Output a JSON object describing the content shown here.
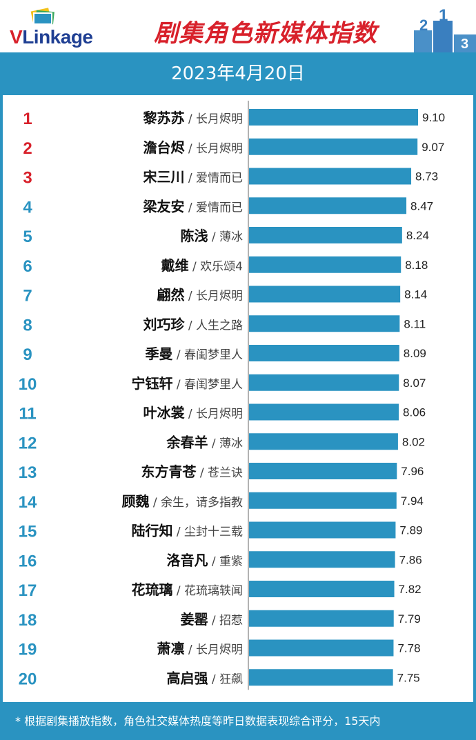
{
  "header": {
    "logo": "VLinkage",
    "title": "剧集角色新媒体指数",
    "podium_digits": [
      "2",
      "1",
      "3"
    ]
  },
  "date": "2023年4月20日",
  "footnote": "* 根据剧集播放指数，角色社交媒体热度等昨日数据表现综合评分，15天内",
  "colors": {
    "accent": "#2a93c1",
    "rank_top": "#d8212b",
    "rank": "#2a93c1",
    "bar": "#2a93c1"
  },
  "chart_data": {
    "type": "bar",
    "orientation": "horizontal",
    "rows": [
      {
        "rank": "1",
        "name": "黎苏苏",
        "show": "长月烬明",
        "value": 9.1,
        "label": "9.10"
      },
      {
        "rank": "2",
        "name": "澹台烬",
        "show": "长月烬明",
        "value": 9.07,
        "label": "9.07"
      },
      {
        "rank": "3",
        "name": "宋三川",
        "show": "爱情而已",
        "value": 8.73,
        "label": "8.73"
      },
      {
        "rank": "4",
        "name": "梁友安",
        "show": "爱情而已",
        "value": 8.47,
        "label": "8.47"
      },
      {
        "rank": "5",
        "name": "陈浅",
        "show": "薄冰",
        "value": 8.24,
        "label": "8.24"
      },
      {
        "rank": "6",
        "name": "戴维",
        "show": "欢乐颂4",
        "value": 8.18,
        "label": "8.18"
      },
      {
        "rank": "7",
        "name": "翩然",
        "show": "长月烬明",
        "value": 8.14,
        "label": "8.14"
      },
      {
        "rank": "8",
        "name": "刘巧珍",
        "show": "人生之路",
        "value": 8.11,
        "label": "8.11"
      },
      {
        "rank": "9",
        "name": "季曼",
        "show": "春闺梦里人",
        "value": 8.09,
        "label": "8.09"
      },
      {
        "rank": "10",
        "name": "宁钰轩",
        "show": "春闺梦里人",
        "value": 8.07,
        "label": "8.07"
      },
      {
        "rank": "11",
        "name": "叶冰裳",
        "show": "长月烬明",
        "value": 8.06,
        "label": "8.06"
      },
      {
        "rank": "12",
        "name": "余春羊",
        "show": "薄冰",
        "value": 8.02,
        "label": "8.02"
      },
      {
        "rank": "13",
        "name": "东方青苍",
        "show": "苍兰诀",
        "value": 7.96,
        "label": "7.96"
      },
      {
        "rank": "14",
        "name": "顾魏",
        "show": "余生，请多指教",
        "value": 7.94,
        "label": "7.94"
      },
      {
        "rank": "15",
        "name": "陆行知",
        "show": "尘封十三载",
        "value": 7.89,
        "label": "7.89"
      },
      {
        "rank": "16",
        "name": "洛音凡",
        "show": "重紫",
        "value": 7.86,
        "label": "7.86"
      },
      {
        "rank": "17",
        "name": "花琉璃",
        "show": "花琉璃轶闻",
        "value": 7.82,
        "label": "7.82"
      },
      {
        "rank": "18",
        "name": "姜罂",
        "show": "招惹",
        "value": 7.79,
        "label": "7.79"
      },
      {
        "rank": "19",
        "name": "萧凛",
        "show": "长月烬明",
        "value": 7.78,
        "label": "7.78"
      },
      {
        "rank": "20",
        "name": "高启强",
        "show": "狂飙",
        "value": 7.75,
        "label": "7.75"
      }
    ]
  }
}
